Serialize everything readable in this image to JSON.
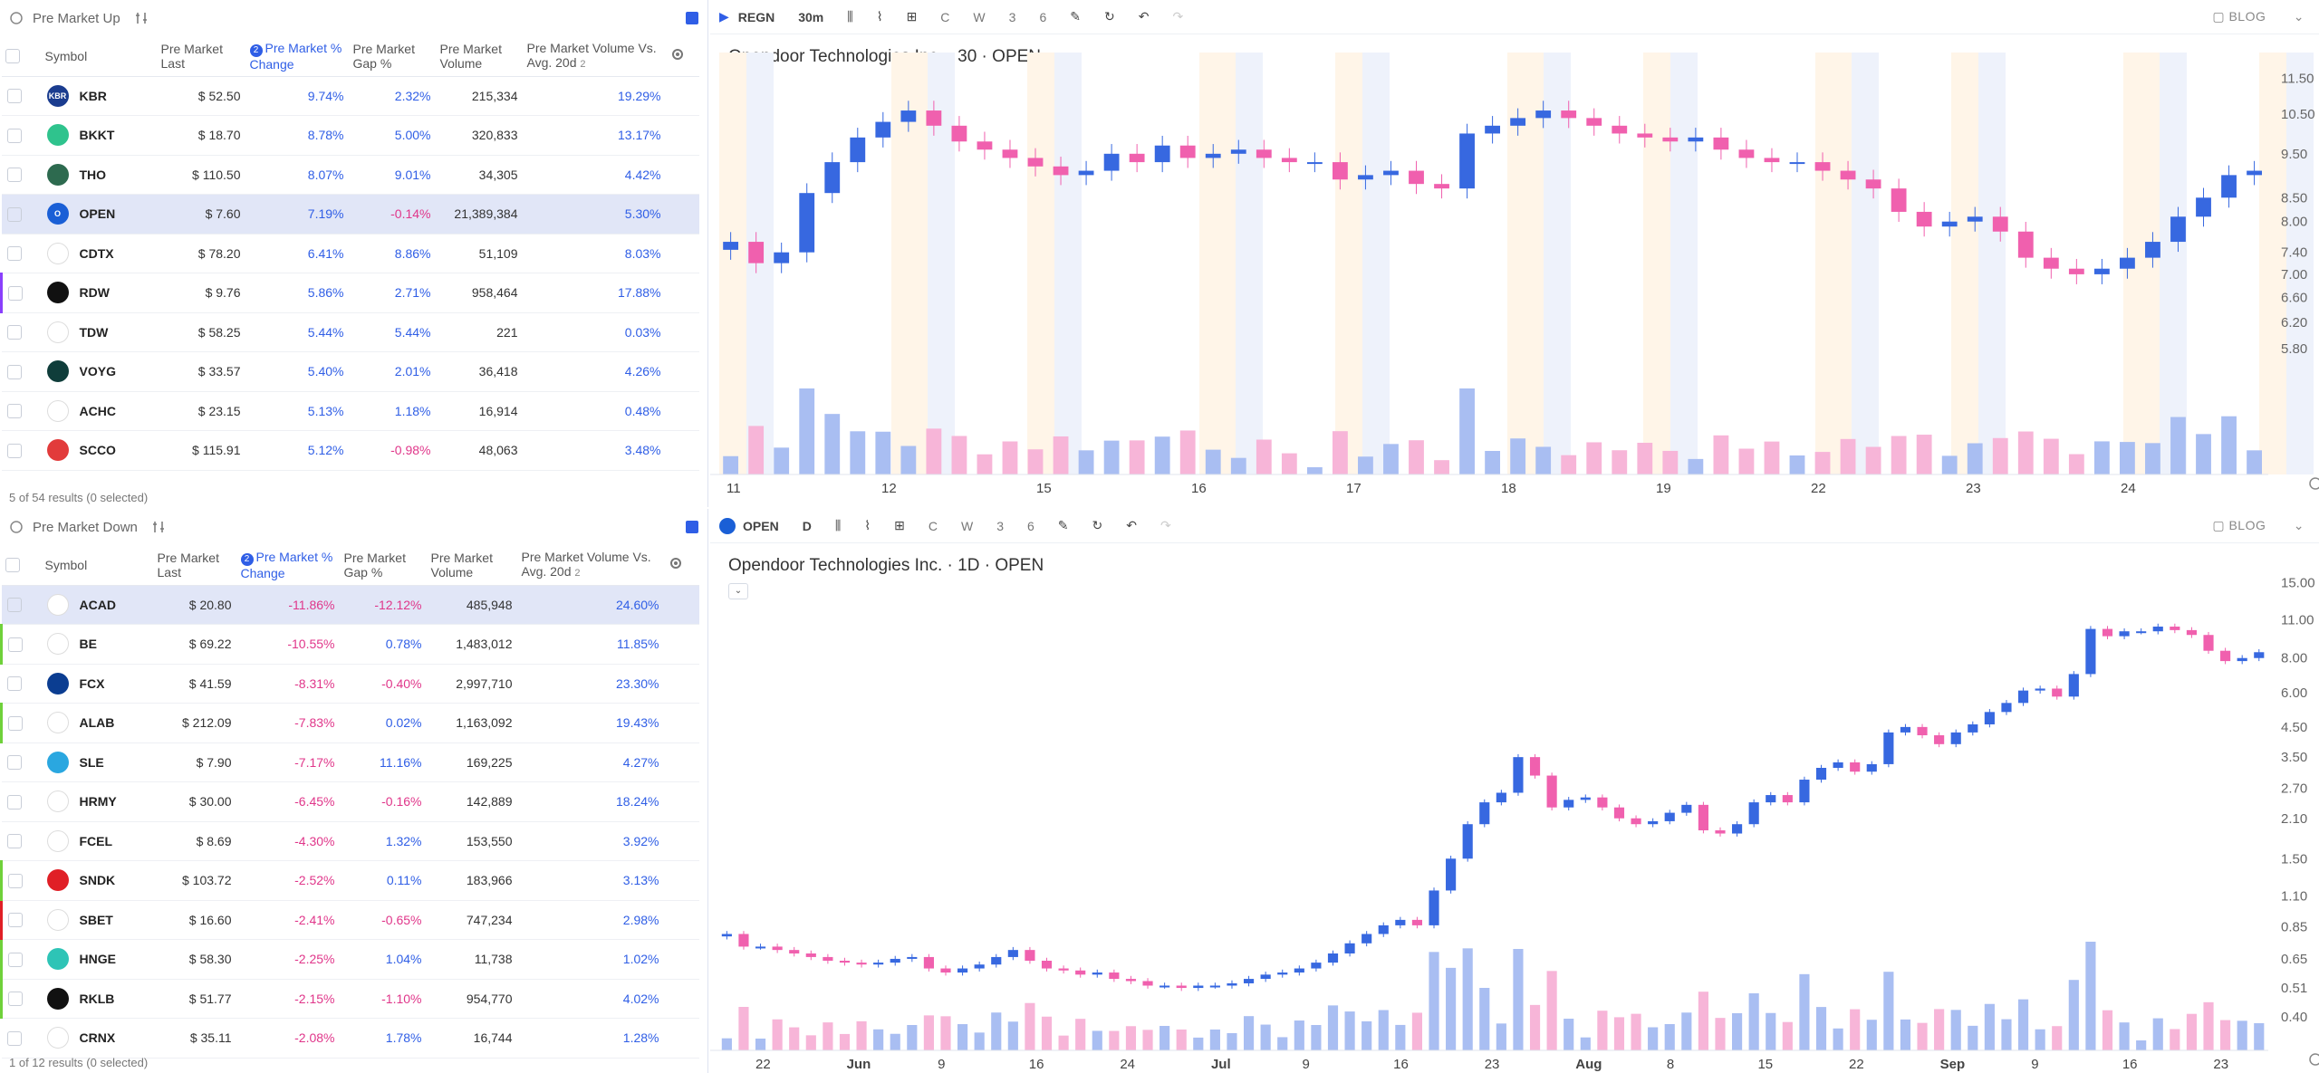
{
  "upper_panel": {
    "title": "Pre Market Up",
    "footer": "5 of 54 results (0 selected)"
  },
  "lower_panel": {
    "title": "Pre Market Down",
    "footer": "1 of 12 results (0 selected)"
  },
  "columns": {
    "symbol": "Symbol",
    "last": "Pre Market Last",
    "change": "Pre Market % Change",
    "gap": "Pre Market Gap %",
    "volume": "Pre Market Volume",
    "vol_avg": "Pre Market Volume Vs. Avg. 20d",
    "sort_badge": "2",
    "col_count": "2"
  },
  "up_rows": [
    {
      "sym": "KBR",
      "last": "$ 52.50",
      "chg": "9.74%",
      "gap": "2.32%",
      "gapneg": false,
      "vol": "215,334",
      "avg": "19.29%",
      "avgneg": false,
      "color": "#1a3c8f",
      "logo": "KBR"
    },
    {
      "sym": "BKKT",
      "last": "$ 18.70",
      "chg": "8.78%",
      "gap": "5.00%",
      "gapneg": false,
      "vol": "320,833",
      "avg": "13.17%",
      "avgneg": false,
      "color": "#2fc38d",
      "logo": ""
    },
    {
      "sym": "THO",
      "last": "$ 110.50",
      "chg": "8.07%",
      "gap": "9.01%",
      "gapneg": false,
      "vol": "34,305",
      "avg": "4.42%",
      "avgneg": false,
      "color": "#2d6a4f",
      "logo": ""
    },
    {
      "sym": "OPEN",
      "last": "$ 7.60",
      "chg": "7.19%",
      "gap": "-0.14%",
      "gapneg": true,
      "vol": "21,389,384",
      "avg": "5.30%",
      "avgneg": false,
      "color": "#1a5fd6",
      "logo": "O"
    },
    {
      "sym": "CDTX",
      "last": "$ 78.20",
      "chg": "6.41%",
      "gap": "8.86%",
      "gapneg": false,
      "vol": "51,109",
      "avg": "8.03%",
      "avgneg": false,
      "color": "#ffffff",
      "logo": ""
    },
    {
      "sym": "RDW",
      "last": "$ 9.76",
      "chg": "5.86%",
      "gap": "2.71%",
      "gapneg": false,
      "vol": "958,464",
      "avg": "17.88%",
      "avgneg": false,
      "color": "#111111",
      "logo": ""
    },
    {
      "sym": "TDW",
      "last": "$ 58.25",
      "chg": "5.44%",
      "gap": "5.44%",
      "gapneg": false,
      "vol": "221",
      "avg": "0.03%",
      "avgneg": false,
      "color": "#ffffff",
      "logo": ""
    },
    {
      "sym": "VOYG",
      "last": "$ 33.57",
      "chg": "5.40%",
      "gap": "2.01%",
      "gapneg": false,
      "vol": "36,418",
      "avg": "4.26%",
      "avgneg": false,
      "color": "#0f3d3a",
      "logo": ""
    },
    {
      "sym": "ACHC",
      "last": "$ 23.15",
      "chg": "5.13%",
      "gap": "1.18%",
      "gapneg": false,
      "vol": "16,914",
      "avg": "0.48%",
      "avgneg": false,
      "color": "#ffffff",
      "logo": ""
    },
    {
      "sym": "SCCO",
      "last": "$ 115.91",
      "chg": "5.12%",
      "gap": "-0.98%",
      "gapneg": true,
      "vol": "48,063",
      "avg": "3.48%",
      "avgneg": false,
      "color": "#e23b3b",
      "logo": ""
    }
  ],
  "down_rows": [
    {
      "sym": "ACAD",
      "last": "$ 20.80",
      "chg": "-11.86%",
      "gap": "-12.12%",
      "gapneg": true,
      "vol": "485,948",
      "avg": "24.60%",
      "color": "#ffffff",
      "logo": ""
    },
    {
      "sym": "BE",
      "last": "$ 69.22",
      "chg": "-10.55%",
      "gap": "0.78%",
      "gapneg": false,
      "vol": "1,483,012",
      "avg": "11.85%",
      "color": "#ffffff",
      "logo": "Be"
    },
    {
      "sym": "FCX",
      "last": "$ 41.59",
      "chg": "-8.31%",
      "gap": "-0.40%",
      "gapneg": true,
      "vol": "2,997,710",
      "avg": "23.30%",
      "color": "#0b3d91",
      "logo": ""
    },
    {
      "sym": "ALAB",
      "last": "$ 212.09",
      "chg": "-7.83%",
      "gap": "0.02%",
      "gapneg": false,
      "vol": "1,163,092",
      "avg": "19.43%",
      "color": "#ffffff",
      "logo": ""
    },
    {
      "sym": "SLE",
      "last": "$ 7.90",
      "chg": "-7.17%",
      "gap": "11.16%",
      "gapneg": false,
      "vol": "169,225",
      "avg": "4.27%",
      "color": "#2aa7e0",
      "logo": ""
    },
    {
      "sym": "HRMY",
      "last": "$ 30.00",
      "chg": "-6.45%",
      "gap": "-0.16%",
      "gapneg": true,
      "vol": "142,889",
      "avg": "18.24%",
      "color": "#ffffff",
      "logo": ""
    },
    {
      "sym": "FCEL",
      "last": "$ 8.69",
      "chg": "-4.30%",
      "gap": "1.32%",
      "gapneg": false,
      "vol": "153,550",
      "avg": "3.92%",
      "color": "#ffffff",
      "logo": ""
    },
    {
      "sym": "SNDK",
      "last": "$ 103.72",
      "chg": "-2.52%",
      "gap": "0.11%",
      "gapneg": false,
      "vol": "183,966",
      "avg": "3.13%",
      "color": "#e01f26",
      "logo": ""
    },
    {
      "sym": "SBET",
      "last": "$ 16.60",
      "chg": "-2.41%",
      "gap": "-0.65%",
      "gapneg": true,
      "vol": "747,234",
      "avg": "2.98%",
      "color": "#ffffff",
      "logo": ""
    },
    {
      "sym": "HNGE",
      "last": "$ 58.30",
      "chg": "-2.25%",
      "gap": "1.04%",
      "gapneg": false,
      "vol": "11,738",
      "avg": "1.02%",
      "color": "#2ec4b6",
      "logo": ""
    },
    {
      "sym": "RKLB",
      "last": "$ 51.77",
      "chg": "-2.15%",
      "gap": "-1.10%",
      "gapneg": true,
      "vol": "954,770",
      "avg": "4.02%",
      "color": "#111111",
      "logo": ""
    },
    {
      "sym": "CRNX",
      "last": "$ 35.11",
      "chg": "-2.08%",
      "gap": "1.78%",
      "gapneg": false,
      "vol": "16,744",
      "avg": "1.28%",
      "color": "#ffffff",
      "logo": ""
    }
  ],
  "top_chart": {
    "toolbar": {
      "symbol": "REGN",
      "interval": "30m",
      "c": "C",
      "w": "W",
      "n3": "3",
      "n6": "6",
      "blog": "BLOG"
    },
    "title": "Opendoor Technologies Inc. · 30 · OPEN"
  },
  "bottom_chart": {
    "toolbar": {
      "symbol": "OPEN",
      "interval": "D",
      "c": "C",
      "w": "W",
      "n3": "3",
      "n6": "6",
      "blog": "BLOG"
    },
    "title": "Opendoor Technologies Inc. · 1D · OPEN"
  },
  "chart_data": [
    {
      "type": "candlestick",
      "title": "Opendoor Technologies Inc. · 30 · OPEN",
      "x_ticks": [
        "11",
        "12",
        "15",
        "16",
        "17",
        "18",
        "19",
        "22",
        "23",
        "24"
      ],
      "y_ticks": [
        "11.50",
        "10.50",
        "9.50",
        "8.50",
        "8.00",
        "7.40",
        "7.00",
        "6.60",
        "6.20",
        "5.80"
      ],
      "y_scale": "log",
      "ylim": [
        5.5,
        12
      ],
      "closes": [
        7.6,
        7.2,
        7.4,
        8.6,
        9.3,
        9.9,
        10.3,
        10.6,
        10.2,
        9.8,
        9.6,
        9.4,
        9.2,
        9.0,
        9.1,
        9.5,
        9.3,
        9.7,
        9.4,
        9.5,
        9.6,
        9.4,
        9.3,
        9.3,
        8.9,
        9.0,
        9.1,
        8.8,
        8.7,
        10.0,
        10.2,
        10.4,
        10.6,
        10.4,
        10.2,
        10.0,
        9.9,
        9.8,
        9.9,
        9.6,
        9.4,
        9.3,
        9.3,
        9.1,
        8.9,
        8.7,
        8.2,
        7.9,
        8.0,
        8.1,
        7.8,
        7.3,
        7.1,
        7.0,
        7.1,
        7.3,
        7.6,
        8.1,
        8.5,
        9.0,
        9.1
      ]
    },
    {
      "type": "candlestick",
      "title": "Opendoor Technologies Inc. · 1D · OPEN",
      "x_ticks": [
        "22",
        "Jun",
        "9",
        "16",
        "24",
        "Jul",
        "9",
        "16",
        "23",
        "Aug",
        "8",
        "15",
        "22",
        "Sep",
        "9",
        "16",
        "23"
      ],
      "y_ticks": [
        "15.00",
        "11.00",
        "8.00",
        "6.00",
        "4.50",
        "3.50",
        "2.70",
        "2.10",
        "1.50",
        "1.10",
        "0.85",
        "0.65",
        "0.51",
        "0.40"
      ],
      "y_scale": "log",
      "ylim": [
        0.38,
        16
      ],
      "closes": [
        0.8,
        0.72,
        0.72,
        0.7,
        0.68,
        0.66,
        0.64,
        0.63,
        0.62,
        0.63,
        0.65,
        0.66,
        0.6,
        0.58,
        0.6,
        0.62,
        0.66,
        0.7,
        0.64,
        0.6,
        0.59,
        0.57,
        0.58,
        0.55,
        0.54,
        0.52,
        0.52,
        0.51,
        0.52,
        0.52,
        0.53,
        0.55,
        0.57,
        0.58,
        0.6,
        0.63,
        0.68,
        0.74,
        0.8,
        0.86,
        0.9,
        0.86,
        1.15,
        1.5,
        2.0,
        2.4,
        2.6,
        3.5,
        3.0,
        2.3,
        2.45,
        2.5,
        2.3,
        2.1,
        2.0,
        2.05,
        2.2,
        2.35,
        1.9,
        1.85,
        2.0,
        2.4,
        2.55,
        2.4,
        2.9,
        3.2,
        3.35,
        3.1,
        3.3,
        4.3,
        4.5,
        4.2,
        3.9,
        4.3,
        4.6,
        5.1,
        5.5,
        6.1,
        6.2,
        5.8,
        7.0,
        10.2,
        9.6,
        10.0,
        10.0,
        10.4,
        10.1,
        9.7,
        8.5,
        7.8,
        8.0,
        8.4
      ]
    }
  ]
}
